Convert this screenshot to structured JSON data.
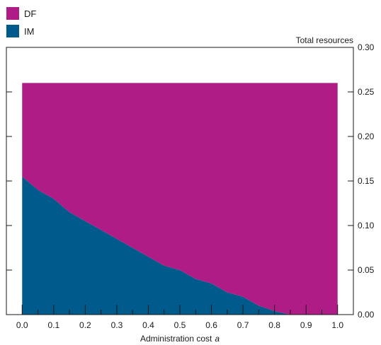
{
  "chart_data": {
    "type": "area",
    "stacked": true,
    "title": "",
    "xlabel": "Administration cost",
    "xlabel_var": "a",
    "ylabel": "Total resources",
    "ylabel_position": "right",
    "xlim": [
      -0.05,
      1.05
    ],
    "ylim": [
      0,
      0.3
    ],
    "x_ticks": [
      "0.0",
      "0.1",
      "0.2",
      "0.3",
      "0.4",
      "0.5",
      "0.6",
      "0.7",
      "0.8",
      "0.9",
      "1.0"
    ],
    "x_tick_values": [
      0.0,
      0.1,
      0.2,
      0.3,
      0.4,
      0.5,
      0.6,
      0.7,
      0.8,
      0.9,
      1.0
    ],
    "y_ticks": [
      "0.00",
      "0.05",
      "0.10",
      "0.15",
      "0.20",
      "0.25",
      "0.30"
    ],
    "y_tick_values": [
      0.0,
      0.05,
      0.1,
      0.15,
      0.2,
      0.25,
      0.3
    ],
    "grid": false,
    "legend_position": "top-left",
    "x": [
      0.0,
      0.05,
      0.1,
      0.15,
      0.2,
      0.25,
      0.3,
      0.35,
      0.4,
      0.45,
      0.5,
      0.55,
      0.6,
      0.65,
      0.7,
      0.75,
      0.8,
      0.85,
      0.9,
      0.95,
      1.0
    ],
    "series": [
      {
        "name": "IM",
        "color": "#005a8c",
        "values": [
          0.155,
          0.14,
          0.13,
          0.115,
          0.105,
          0.095,
          0.085,
          0.075,
          0.065,
          0.055,
          0.05,
          0.04,
          0.035,
          0.025,
          0.02,
          0.01,
          0.004,
          0.0,
          0.0,
          0.0,
          0.0
        ]
      },
      {
        "name": "DF",
        "color": "#b01c85",
        "values": [
          0.105,
          0.12,
          0.13,
          0.145,
          0.155,
          0.165,
          0.175,
          0.185,
          0.195,
          0.205,
          0.21,
          0.22,
          0.225,
          0.235,
          0.24,
          0.25,
          0.256,
          0.26,
          0.26,
          0.26,
          0.26
        ]
      }
    ]
  }
}
